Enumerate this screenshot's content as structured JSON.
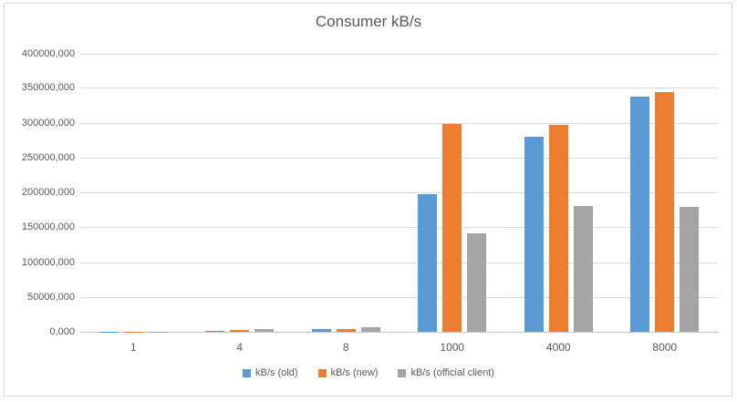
{
  "chart_data": {
    "type": "bar",
    "title": "Consumer kB/s",
    "categories": [
      "1",
      "4",
      "8",
      "1000",
      "4000",
      "8000"
    ],
    "series": [
      {
        "name": "kB/s (old)",
        "color": "#5B9BD5",
        "values": [
          300000,
          1800000,
          3500000,
          198000000,
          280000000,
          337000000
        ]
      },
      {
        "name": "kB/s (new)",
        "color": "#ED7D31",
        "values": [
          350000,
          2000000,
          3600000,
          298000000,
          297000000,
          344000000
        ]
      },
      {
        "name": "kB/s (official client)",
        "color": "#A5A5A5",
        "values": [
          450000,
          4000000,
          6500000,
          141000000,
          181000000,
          179000000
        ]
      }
    ],
    "y_axis": {
      "min": 0,
      "max": 400000000,
      "tick_interval": 50000000,
      "tick_labels": [
        "0,000",
        "50000,000",
        "100000,000",
        "150000,000",
        "200000,000",
        "250000,000",
        "300000,000",
        "350000,000",
        "400000,000"
      ]
    },
    "xlabel": "",
    "ylabel": "",
    "legend_position": "bottom",
    "grid": true
  },
  "colors": {
    "text": "#595959",
    "gridline": "#D9D9D9",
    "axis_line": "#C6C6C6",
    "frame_border": "#D9D9D9",
    "background": "#FFFFFF"
  }
}
